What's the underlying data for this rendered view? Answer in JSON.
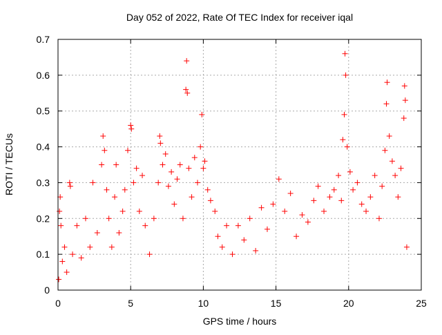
{
  "chart_data": {
    "type": "scatter",
    "title": "Day 052 of 2022, Rate Of TEC Index for receiver iqal",
    "xlabel": "GPS time / hours",
    "ylabel": "ROTI / TECUs",
    "xlim": [
      0,
      25
    ],
    "ylim": [
      0,
      0.7
    ],
    "x_ticks": [
      0,
      5,
      10,
      15,
      20,
      25
    ],
    "y_ticks": [
      0,
      0.1,
      0.2,
      0.3,
      0.4,
      0.5,
      0.6,
      0.7
    ],
    "x_tick_labels": [
      "0",
      "5",
      "10",
      "15",
      "20",
      "25"
    ],
    "y_tick_labels": [
      "0",
      "0.1",
      "0.2",
      "0.3",
      "0.4",
      "0.5",
      "0.6",
      "0.7"
    ],
    "grid": true,
    "marker": "+",
    "series": [
      {
        "color": "#ff0000",
        "points": [
          [
            0.05,
            0.03
          ],
          [
            0.1,
            0.22
          ],
          [
            0.15,
            0.26
          ],
          [
            0.2,
            0.18
          ],
          [
            0.3,
            0.08
          ],
          [
            0.45,
            0.12
          ],
          [
            0.6,
            0.05
          ],
          [
            0.8,
            0.3
          ],
          [
            0.85,
            0.29
          ],
          [
            1.0,
            0.1
          ],
          [
            1.3,
            0.18
          ],
          [
            1.6,
            0.09
          ],
          [
            1.9,
            0.2
          ],
          [
            2.2,
            0.12
          ],
          [
            2.4,
            0.3
          ],
          [
            2.7,
            0.16
          ],
          [
            3.0,
            0.35
          ],
          [
            3.1,
            0.43
          ],
          [
            3.2,
            0.39
          ],
          [
            3.35,
            0.28
          ],
          [
            3.5,
            0.2
          ],
          [
            3.7,
            0.12
          ],
          [
            3.9,
            0.26
          ],
          [
            4.0,
            0.35
          ],
          [
            4.2,
            0.16
          ],
          [
            4.45,
            0.22
          ],
          [
            4.6,
            0.28
          ],
          [
            4.8,
            0.39
          ],
          [
            5.0,
            0.46
          ],
          [
            5.05,
            0.45
          ],
          [
            5.2,
            0.3
          ],
          [
            5.4,
            0.34
          ],
          [
            5.6,
            0.22
          ],
          [
            5.8,
            0.32
          ],
          [
            6.0,
            0.18
          ],
          [
            6.3,
            0.1
          ],
          [
            6.6,
            0.2
          ],
          [
            6.9,
            0.3
          ],
          [
            7.0,
            0.43
          ],
          [
            7.05,
            0.41
          ],
          [
            7.2,
            0.35
          ],
          [
            7.4,
            0.38
          ],
          [
            7.6,
            0.29
          ],
          [
            7.8,
            0.33
          ],
          [
            8.0,
            0.24
          ],
          [
            8.2,
            0.31
          ],
          [
            8.4,
            0.35
          ],
          [
            8.6,
            0.2
          ],
          [
            8.8,
            0.56
          ],
          [
            8.85,
            0.64
          ],
          [
            8.9,
            0.55
          ],
          [
            9.0,
            0.34
          ],
          [
            9.2,
            0.26
          ],
          [
            9.4,
            0.37
          ],
          [
            9.6,
            0.3
          ],
          [
            9.8,
            0.4
          ],
          [
            9.9,
            0.49
          ],
          [
            10.0,
            0.34
          ],
          [
            10.1,
            0.36
          ],
          [
            10.3,
            0.28
          ],
          [
            10.5,
            0.25
          ],
          [
            10.8,
            0.22
          ],
          [
            11.0,
            0.15
          ],
          [
            11.3,
            0.12
          ],
          [
            11.6,
            0.18
          ],
          [
            12.0,
            0.1
          ],
          [
            12.4,
            0.18
          ],
          [
            12.8,
            0.14
          ],
          [
            13.2,
            0.2
          ],
          [
            13.6,
            0.11
          ],
          [
            14.0,
            0.23
          ],
          [
            14.4,
            0.17
          ],
          [
            14.8,
            0.24
          ],
          [
            15.2,
            0.31
          ],
          [
            15.6,
            0.22
          ],
          [
            16.0,
            0.27
          ],
          [
            16.4,
            0.15
          ],
          [
            16.8,
            0.21
          ],
          [
            17.2,
            0.19
          ],
          [
            17.6,
            0.25
          ],
          [
            17.9,
            0.29
          ],
          [
            18.3,
            0.22
          ],
          [
            18.7,
            0.26
          ],
          [
            19.0,
            0.28
          ],
          [
            19.3,
            0.32
          ],
          [
            19.5,
            0.25
          ],
          [
            19.6,
            0.42
          ],
          [
            19.7,
            0.49
          ],
          [
            19.75,
            0.66
          ],
          [
            19.8,
            0.6
          ],
          [
            19.9,
            0.4
          ],
          [
            20.1,
            0.33
          ],
          [
            20.3,
            0.28
          ],
          [
            20.6,
            0.3
          ],
          [
            20.9,
            0.24
          ],
          [
            21.2,
            0.22
          ],
          [
            21.5,
            0.26
          ],
          [
            21.8,
            0.32
          ],
          [
            22.1,
            0.2
          ],
          [
            22.3,
            0.29
          ],
          [
            22.5,
            0.39
          ],
          [
            22.6,
            0.52
          ],
          [
            22.65,
            0.58
          ],
          [
            22.8,
            0.43
          ],
          [
            23.0,
            0.36
          ],
          [
            23.2,
            0.32
          ],
          [
            23.4,
            0.26
          ],
          [
            23.6,
            0.34
          ],
          [
            23.8,
            0.48
          ],
          [
            23.85,
            0.57
          ],
          [
            23.9,
            0.53
          ],
          [
            24.0,
            0.12
          ]
        ]
      }
    ]
  }
}
